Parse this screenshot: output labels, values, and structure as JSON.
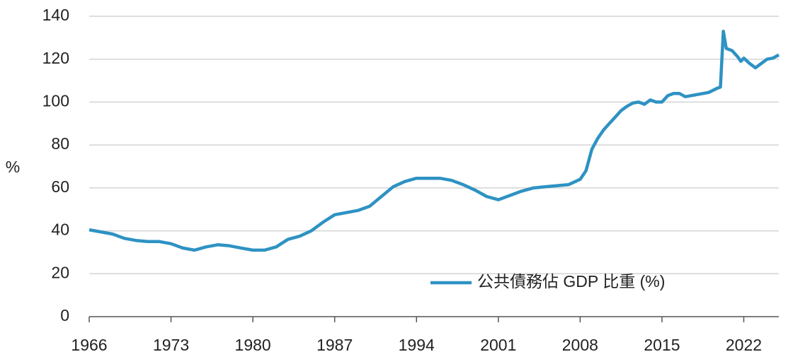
{
  "chart_data": {
    "type": "line",
    "y_label": "%",
    "x": [
      1966,
      1967,
      1968,
      1969,
      1970,
      1971,
      1972,
      1973,
      1974,
      1975,
      1976,
      1977,
      1978,
      1979,
      1980,
      1981,
      1982,
      1983,
      1984,
      1985,
      1986,
      1987,
      1988,
      1989,
      1990,
      1991,
      1992,
      1993,
      1994,
      1995,
      1996,
      1997,
      1998,
      1999,
      2000,
      2001,
      2002,
      2003,
      2004,
      2005,
      2006,
      2007,
      2008,
      2008.5,
      2009,
      2009.5,
      2010,
      2010.5,
      2011,
      2011.5,
      2012,
      2012.5,
      2013,
      2013.5,
      2014,
      2014.5,
      2015,
      2015.5,
      2016,
      2016.5,
      2017,
      2017.5,
      2018,
      2018.5,
      2019,
      2019.75,
      2020,
      2020.25,
      2020.5,
      2021,
      2021.5,
      2021.75,
      2022,
      2022.5,
      2023,
      2023.5,
      2024,
      2024.5,
      2025
    ],
    "series": [
      {
        "name": "公共債務佔 GDP 比重 (%)",
        "color": "#2e92c3",
        "values": [
          40.5,
          39.5,
          38.5,
          36.5,
          35.5,
          35,
          35,
          34,
          32,
          31,
          32.5,
          33.5,
          33,
          32,
          31,
          31,
          32.5,
          36,
          37.5,
          40,
          44,
          47.5,
          48.5,
          49.5,
          51.5,
          56,
          60.5,
          63,
          64.5,
          64.5,
          64.5,
          63.5,
          61.5,
          59,
          56,
          54.5,
          56.5,
          58.5,
          60,
          60.5,
          61,
          61.5,
          64,
          68,
          78,
          83,
          87,
          90,
          93,
          96,
          98,
          99.5,
          100,
          99,
          101,
          100,
          100,
          103,
          104,
          104,
          102.5,
          103,
          103.5,
          104,
          104.5,
          106.5,
          107,
          133,
          125,
          124,
          121,
          119,
          120.5,
          118,
          116,
          118,
          120,
          120.5,
          122
        ]
      }
    ],
    "xlim": [
      1966,
      2025
    ],
    "xticks": [
      1966,
      1973,
      1980,
      1987,
      1994,
      2001,
      2008,
      2015,
      2022
    ],
    "ylim": [
      0,
      140
    ],
    "yticks": [
      0,
      20,
      40,
      60,
      80,
      100,
      120,
      140
    ],
    "grid": true,
    "legend": "lower-right"
  }
}
